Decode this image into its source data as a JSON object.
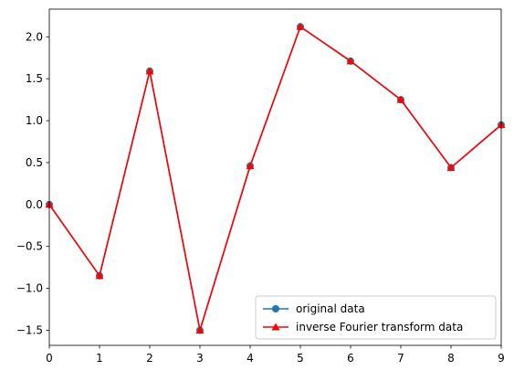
{
  "chart_data": {
    "type": "line",
    "title": "",
    "xlabel": "",
    "ylabel": "",
    "xlim": [
      0,
      9
    ],
    "ylim": [
      -1.68,
      2.33
    ],
    "grid": false,
    "legend_placement": "lower-right",
    "x": [
      0,
      1,
      2,
      3,
      4,
      5,
      6,
      7,
      8,
      9
    ],
    "x_ticks": [
      0,
      1,
      2,
      3,
      4,
      5,
      6,
      7,
      8,
      9
    ],
    "x_tick_labels": [
      "0",
      "1",
      "2",
      "3",
      "4",
      "5",
      "6",
      "7",
      "8",
      "9"
    ],
    "y_ticks": [
      -1.5,
      -1.0,
      -0.5,
      0.0,
      0.5,
      1.0,
      1.5,
      2.0
    ],
    "y_tick_labels": [
      "−1.5",
      "−1.0",
      "−0.5",
      "0.0",
      "0.5",
      "1.0",
      "1.5",
      "2.0"
    ],
    "series": [
      {
        "name": "original data",
        "values": [
          0.0,
          -0.85,
          1.59,
          -1.5,
          0.46,
          2.12,
          1.71,
          1.25,
          0.44,
          0.95
        ],
        "color": "#1f77b4",
        "marker": "circle"
      },
      {
        "name": "inverse Fourier transform data",
        "values": [
          0.0,
          -0.85,
          1.59,
          -1.5,
          0.46,
          2.12,
          1.71,
          1.25,
          0.44,
          0.95
        ],
        "color": "#ff0000",
        "marker": "triangle"
      }
    ]
  }
}
